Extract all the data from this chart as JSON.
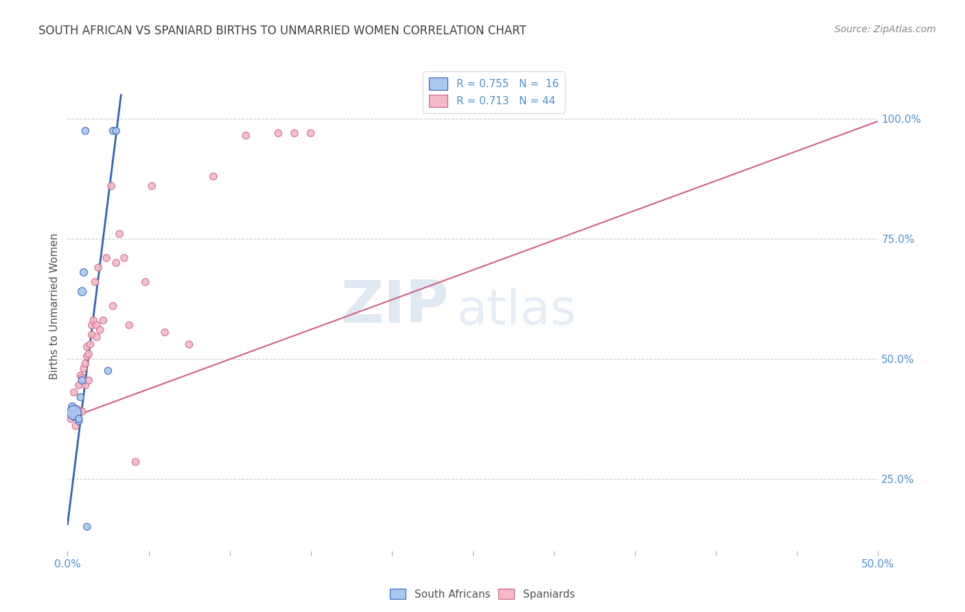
{
  "title": "SOUTH AFRICAN VS SPANIARD BIRTHS TO UNMARRIED WOMEN CORRELATION CHART",
  "source": "Source: ZipAtlas.com",
  "ylabel": "Births to Unmarried Women",
  "xlim": [
    0.0,
    0.5
  ],
  "ylim": [
    0.1,
    1.12
  ],
  "watermark_zip": "ZIP",
  "watermark_atlas": "atlas",
  "south_african_color": "#a8c8f0",
  "spaniard_color": "#f5b8c8",
  "blue_line_color": "#3060c0",
  "pink_line_color": "#d06080",
  "south_african_x": [
    0.003,
    0.003,
    0.004,
    0.004,
    0.004,
    0.007,
    0.007,
    0.008,
    0.009,
    0.009,
    0.01,
    0.011,
    0.012,
    0.025,
    0.028,
    0.03
  ],
  "south_african_y": [
    0.395,
    0.4,
    0.378,
    0.385,
    0.388,
    0.37,
    0.375,
    0.42,
    0.455,
    0.64,
    0.68,
    0.975,
    0.15,
    0.475,
    0.975,
    0.975
  ],
  "south_african_sizes": [
    55,
    70,
    40,
    45,
    220,
    50,
    55,
    55,
    60,
    75,
    60,
    55,
    55,
    55,
    55,
    55
  ],
  "spaniard_x": [
    0.002,
    0.003,
    0.003,
    0.004,
    0.005,
    0.006,
    0.007,
    0.008,
    0.009,
    0.009,
    0.01,
    0.011,
    0.011,
    0.012,
    0.012,
    0.013,
    0.013,
    0.014,
    0.015,
    0.015,
    0.016,
    0.017,
    0.018,
    0.018,
    0.019,
    0.02,
    0.022,
    0.024,
    0.027,
    0.028,
    0.03,
    0.032,
    0.035,
    0.038,
    0.042,
    0.048,
    0.052,
    0.06,
    0.075,
    0.09,
    0.11,
    0.13,
    0.14,
    0.15
  ],
  "spaniard_y": [
    0.375,
    0.385,
    0.4,
    0.43,
    0.36,
    0.395,
    0.445,
    0.465,
    0.39,
    0.46,
    0.48,
    0.445,
    0.49,
    0.505,
    0.525,
    0.455,
    0.51,
    0.53,
    0.55,
    0.57,
    0.58,
    0.66,
    0.545,
    0.57,
    0.69,
    0.56,
    0.58,
    0.71,
    0.86,
    0.61,
    0.7,
    0.76,
    0.71,
    0.57,
    0.285,
    0.66,
    0.86,
    0.555,
    0.53,
    0.88,
    0.965,
    0.97,
    0.97,
    0.97
  ],
  "spaniard_sizes": [
    55,
    55,
    55,
    55,
    55,
    55,
    55,
    55,
    55,
    55,
    55,
    55,
    55,
    55,
    55,
    55,
    55,
    55,
    55,
    55,
    55,
    55,
    55,
    55,
    55,
    55,
    55,
    55,
    55,
    55,
    55,
    55,
    55,
    55,
    55,
    55,
    55,
    55,
    55,
    55,
    55,
    55,
    55,
    55
  ],
  "blue_line_x": [
    0.0,
    0.033
  ],
  "blue_line_y": [
    0.155,
    1.05
  ],
  "pink_line_x": [
    0.0,
    0.5
  ],
  "pink_line_y": [
    0.375,
    0.995
  ],
  "grid_color": "#cccccc",
  "background_color": "#ffffff",
  "title_color": "#404040",
  "axis_label_color": "#505050",
  "tick_color": "#5090d0",
  "source_color": "#888888",
  "legend_r1": "R = 0.755   N =  16",
  "legend_r2": "R = 0.713   N = 44"
}
